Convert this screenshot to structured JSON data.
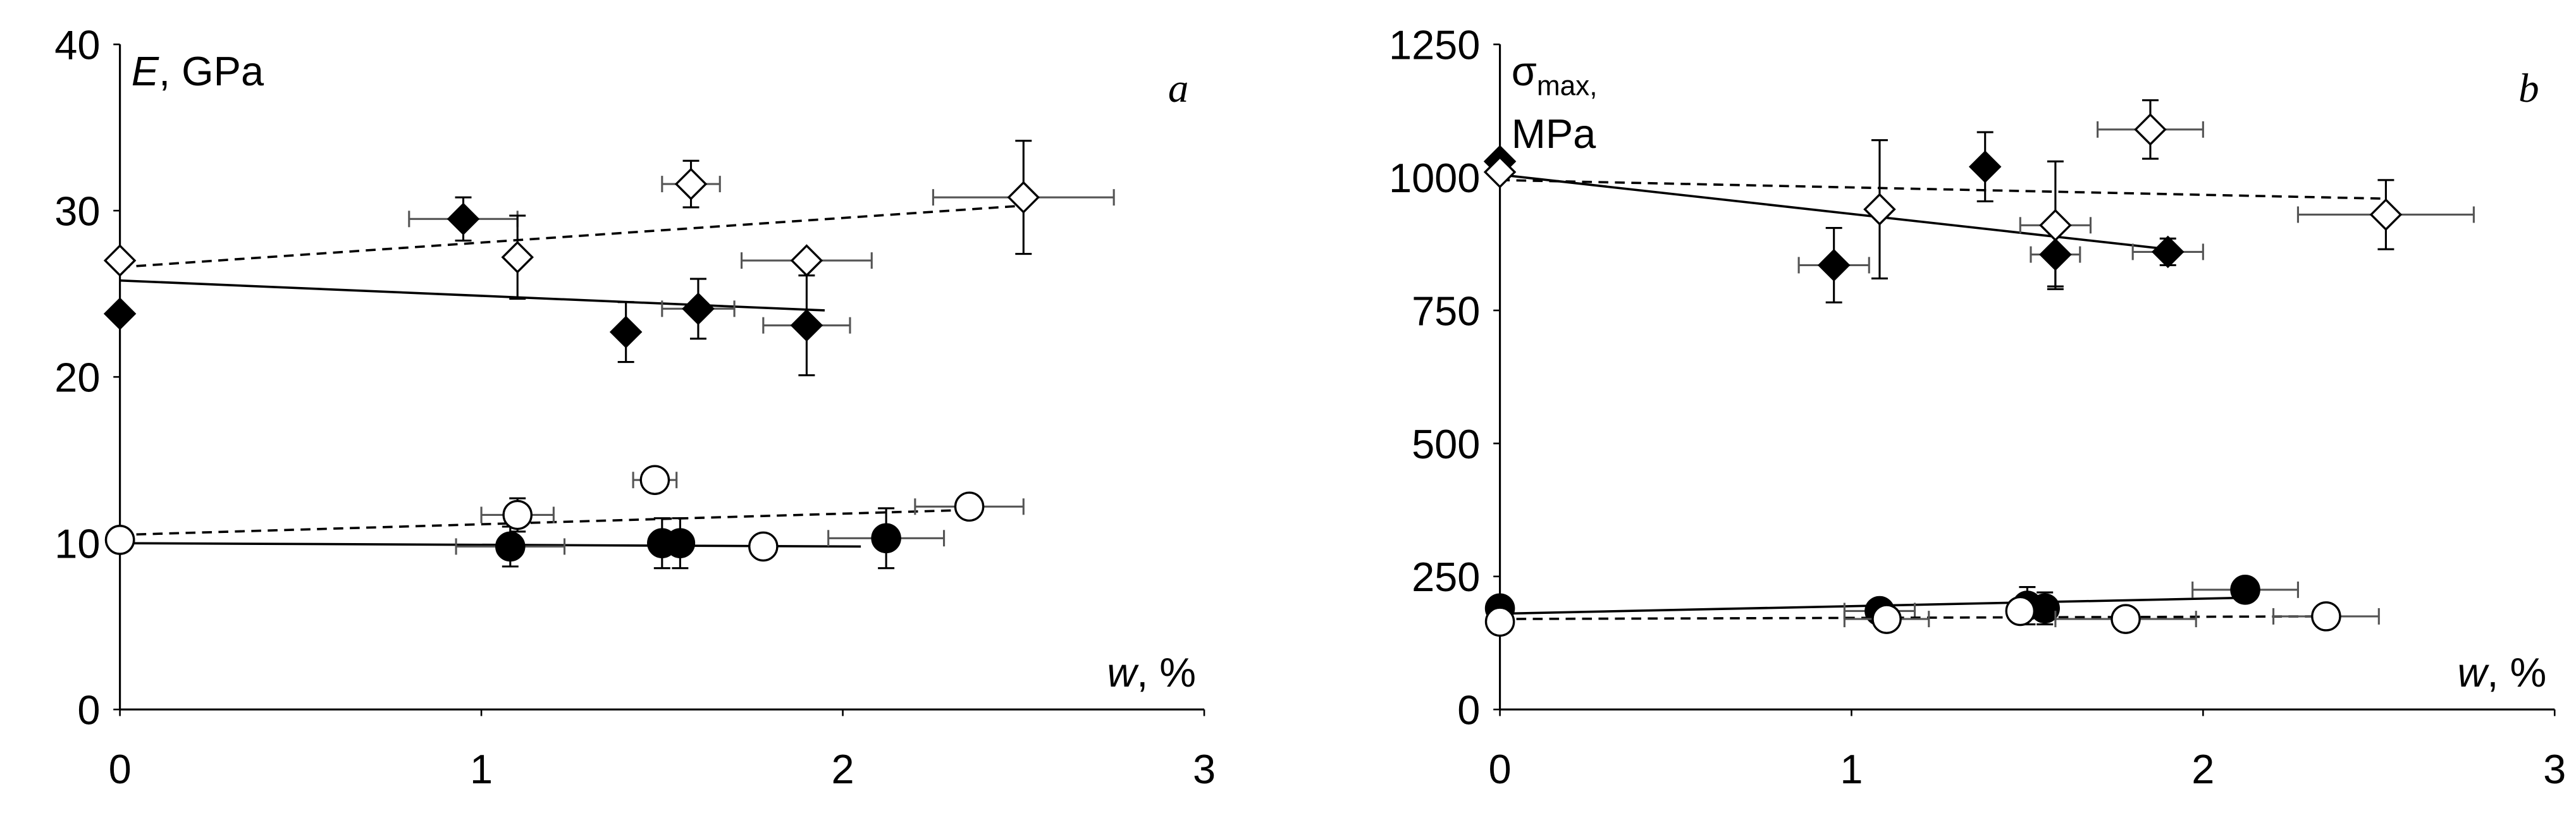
{
  "chart_data": [
    {
      "type": "scatter",
      "panel_label": "a",
      "y_label": {
        "symbol": "E",
        "unit": ", GPa"
      },
      "x_label": {
        "symbol": "w",
        "unit": ", %"
      },
      "xlim": [
        0,
        3
      ],
      "xticks": [
        0,
        1,
        2,
        3
      ],
      "ylim": [
        0,
        40
      ],
      "yticks": [
        0,
        10,
        20,
        30,
        40
      ],
      "series": [
        {
          "marker": "diamond",
          "filled": true,
          "color": "#000000",
          "x": [
            0,
            0.95,
            1.4,
            1.6,
            1.9
          ],
          "values": [
            23.8,
            29.5,
            22.7,
            24.1,
            23.1
          ],
          "x_err": [
            null,
            0.15,
            null,
            0.1,
            0.12
          ],
          "y_err": [
            null,
            1.3,
            1.8,
            1.8,
            3
          ],
          "trend": {
            "x": [
              0,
              1.95
            ],
            "values": [
              25.8,
              24
            ],
            "dashed": false
          }
        },
        {
          "marker": "diamond",
          "filled": false,
          "color": "#000000",
          "x": [
            0,
            1.1,
            1.58,
            1.9,
            2.5
          ],
          "values": [
            27,
            27.2,
            31.6,
            27,
            30.8
          ],
          "x_err": [
            null,
            null,
            0.08,
            0.18,
            0.25
          ],
          "y_err": [
            null,
            2.5,
            1.4,
            null,
            3.4
          ],
          "trend": {
            "x": [
              0,
              2.5
            ],
            "values": [
              26.6,
              30.3
            ],
            "dashed": true
          }
        },
        {
          "marker": "circle",
          "filled": true,
          "color": "#000000",
          "x": [
            0,
            1.08,
            1.5,
            1.55,
            2.12
          ],
          "values": [
            10.2,
            9.8,
            10,
            10,
            10.3
          ],
          "x_err": [
            null,
            0.15,
            null,
            null,
            0.16
          ],
          "y_err": [
            null,
            1.2,
            1.5,
            1.5,
            1.8
          ],
          "trend": {
            "x": [
              0,
              2.05
            ],
            "values": [
              10,
              9.8
            ],
            "dashed": false
          }
        },
        {
          "marker": "circle",
          "filled": false,
          "color": "#000000",
          "x": [
            0,
            1.1,
            1.48,
            1.78,
            2.35
          ],
          "values": [
            10.2,
            11.7,
            13.8,
            9.8,
            12.2
          ],
          "x_err": [
            null,
            0.1,
            0.06,
            null,
            0.15
          ],
          "y_err": [
            null,
            1,
            null,
            null,
            null
          ],
          "trend": {
            "x": [
              0,
              2.35
            ],
            "values": [
              10.5,
              12
            ],
            "dashed": true
          }
        }
      ]
    },
    {
      "type": "scatter",
      "panel_label": "b",
      "y_label": {
        "symbol": "σ",
        "subscript": "max,",
        "unit": "MPa"
      },
      "x_label": {
        "symbol": "w",
        "unit": ", %"
      },
      "xlim": [
        0,
        3
      ],
      "xticks": [
        0,
        1,
        2,
        3
      ],
      "ylim": [
        0,
        1250
      ],
      "yticks": [
        0,
        250,
        500,
        750,
        1000,
        1250
      ],
      "series": [
        {
          "marker": "diamond",
          "filled": true,
          "color": "#000000",
          "x": [
            0,
            0.95,
            1.38,
            1.58,
            1.9
          ],
          "values": [
            1030,
            835,
            1020,
            855,
            860
          ],
          "x_err": [
            null,
            0.1,
            null,
            0.07,
            0.1
          ],
          "y_err": [
            null,
            70,
            65,
            60,
            25
          ],
          "trend": {
            "x": [
              0,
              1.9
            ],
            "values": [
              1005,
              865
            ],
            "dashed": false
          }
        },
        {
          "marker": "diamond",
          "filled": false,
          "color": "#000000",
          "x": [
            0,
            1.08,
            1.58,
            1.85,
            2.52
          ],
          "values": [
            1010,
            940,
            910,
            1090,
            930
          ],
          "x_err": [
            null,
            null,
            0.1,
            0.15,
            0.25
          ],
          "y_err": [
            null,
            130,
            120,
            55,
            65
          ],
          "trend": {
            "x": [
              0,
              2.52
            ],
            "values": [
              995,
              960
            ],
            "dashed": true
          }
        },
        {
          "marker": "circle",
          "filled": true,
          "color": "#000000",
          "x": [
            0,
            1.08,
            1.5,
            1.55,
            2.12
          ],
          "values": [
            190,
            185,
            195,
            190,
            225
          ],
          "x_err": [
            null,
            0.1,
            null,
            null,
            0.15
          ],
          "y_err": [
            null,
            null,
            35,
            30,
            null
          ],
          "trend": {
            "x": [
              0,
              2.12
            ],
            "values": [
              180,
              210
            ],
            "dashed": false
          }
        },
        {
          "marker": "circle",
          "filled": false,
          "color": "#000000",
          "x": [
            0,
            1.1,
            1.48,
            1.78,
            2.35
          ],
          "values": [
            165,
            170,
            185,
            170,
            175
          ],
          "x_err": [
            null,
            0.12,
            null,
            0.2,
            0.15
          ],
          "y_err": [
            null,
            null,
            null,
            null,
            null
          ],
          "trend": {
            "x": [
              0,
              2.35
            ],
            "values": [
              170,
              175
            ],
            "dashed": true
          }
        }
      ]
    }
  ]
}
